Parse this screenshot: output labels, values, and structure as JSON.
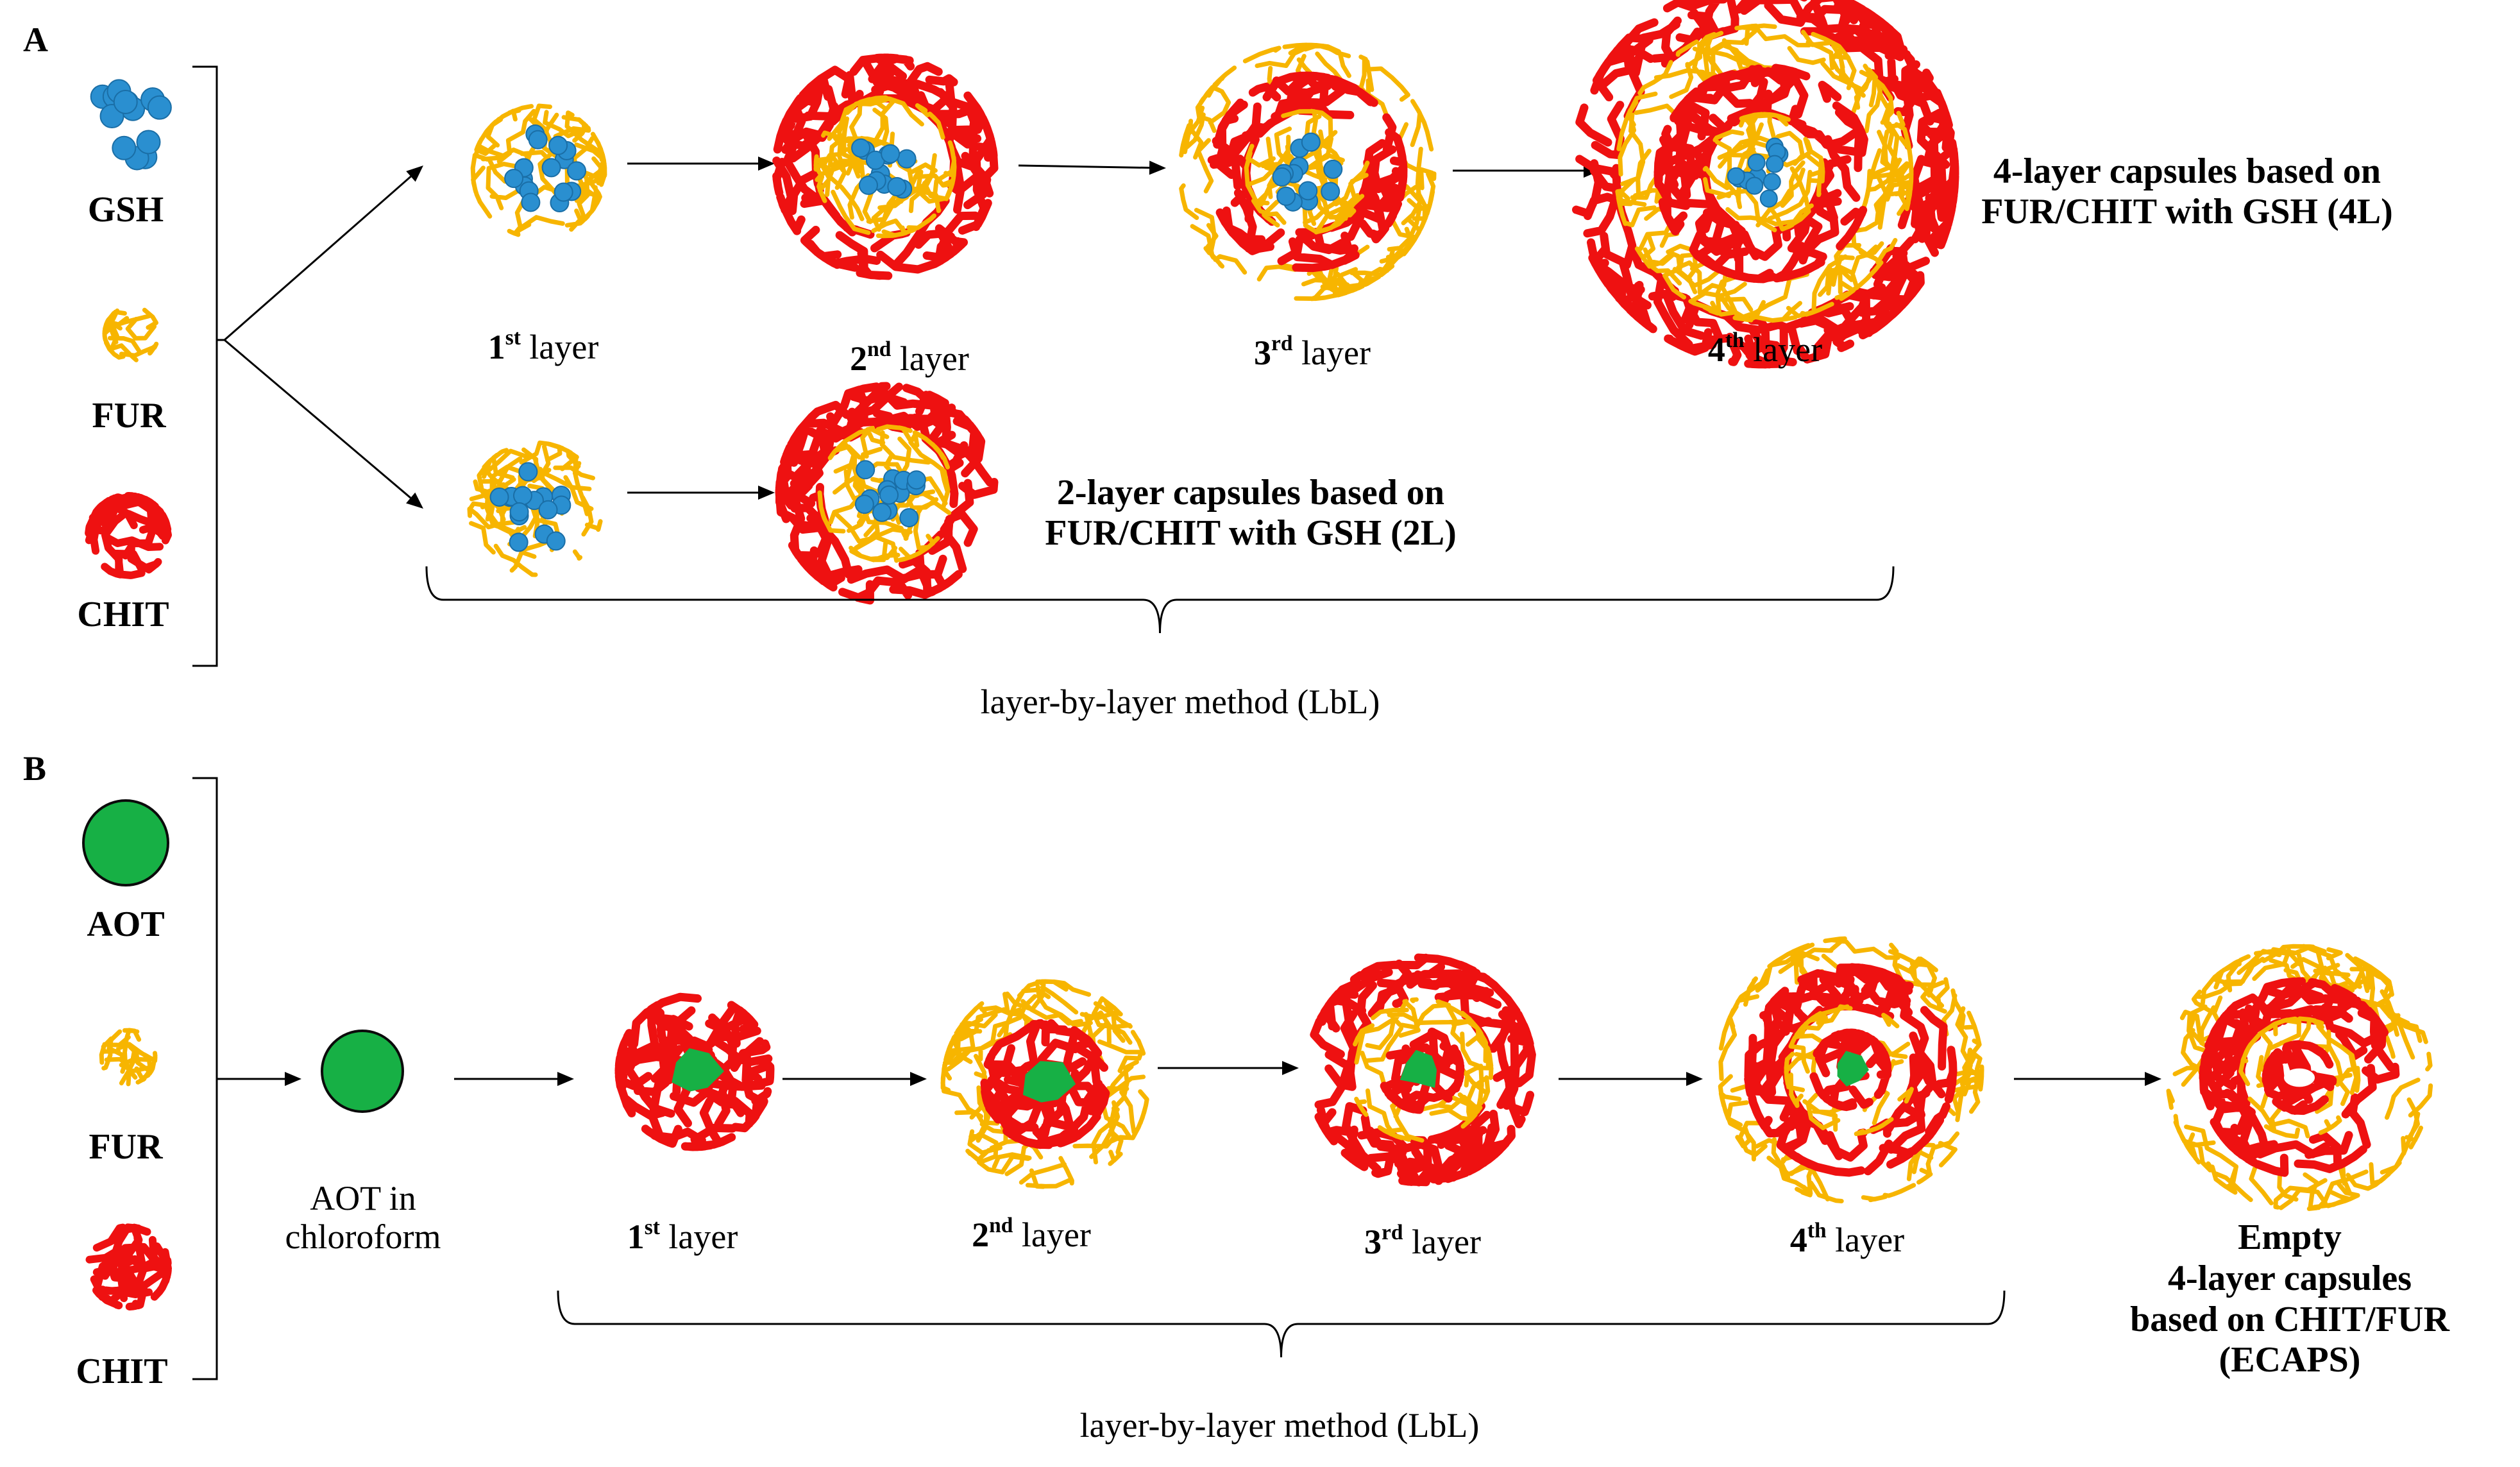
{
  "panel_a": {
    "label": "A",
    "legend": {
      "gsh": "GSH",
      "fur": "FUR",
      "chit": "CHIT"
    },
    "layers": [
      {
        "num": "1",
        "sup": "st",
        "word": "layer"
      },
      {
        "num": "2",
        "sup": "nd",
        "word": "layer"
      },
      {
        "num": "3",
        "sup": "rd",
        "word": "layer"
      },
      {
        "num": "4",
        "sup": "th",
        "word": "layer"
      }
    ],
    "caption_4l": [
      "4-layer capsules based on",
      "FUR/CHIT with GSH (4L)"
    ],
    "caption_2l": [
      "2-layer capsules based on",
      "FUR/CHIT with GSH (2L)"
    ],
    "method": "layer-by-layer  method (LbL)"
  },
  "panel_b": {
    "label": "B",
    "legend": {
      "aot": "AOT",
      "fur": "FUR",
      "chit": "CHIT"
    },
    "aot_label": [
      "AOT in",
      "chloroform"
    ],
    "layers": [
      {
        "num": "1",
        "sup": "st",
        "word": "layer"
      },
      {
        "num": "2",
        "sup": "nd",
        "word": "layer"
      },
      {
        "num": "3",
        "sup": "rd",
        "word": "layer"
      },
      {
        "num": "4",
        "sup": "th",
        "word": "layer"
      }
    ],
    "caption": [
      "Empty",
      "4-layer capsules",
      "based on CHIT/FUR",
      "(ECAPS)"
    ],
    "method": "layer-by-layer  method (LbL)"
  },
  "colors": {
    "fur": "#f7b500",
    "chit": "#ee1111",
    "gsh": "#2a8fd0",
    "aot": "#17b045",
    "aot_stroke": "#0b0b0b",
    "line": "#000000"
  }
}
